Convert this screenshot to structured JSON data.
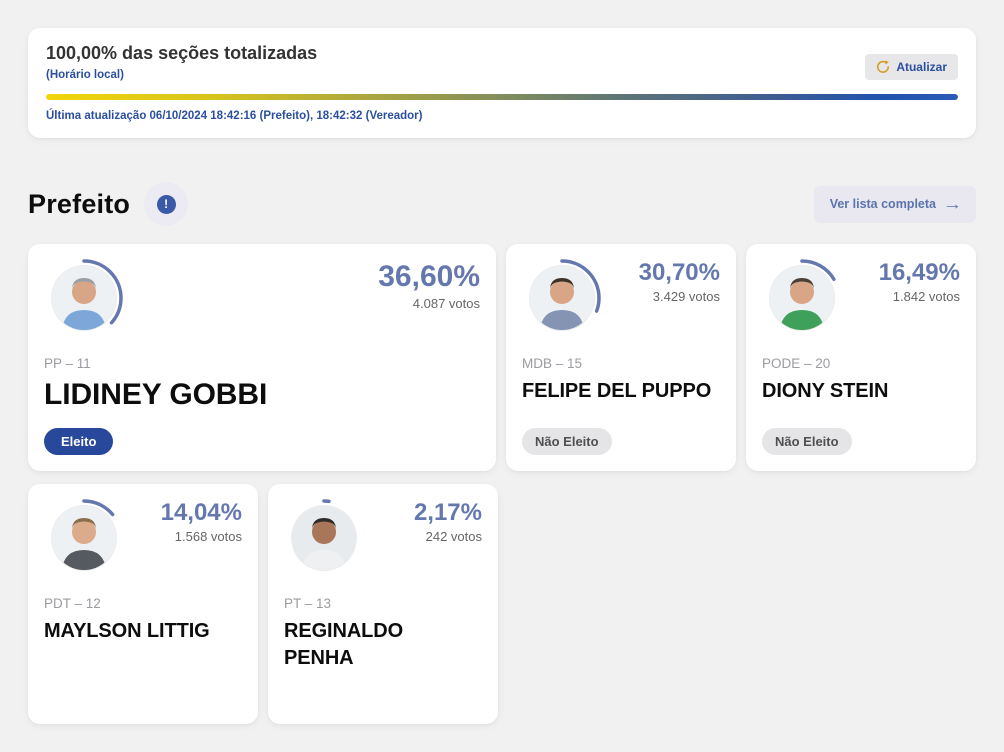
{
  "totalization": {
    "title": "100,00% das seções totalizadas",
    "timezone_note": "(Horário local)",
    "last_update": "Última atualização 06/10/2024 18:42:16 (Prefeito), 18:42:32 (Vereador)",
    "refresh_button": "Atualizar",
    "progress_percent": 100
  },
  "section": {
    "title": "Prefeito",
    "info_glyph": "!",
    "full_list_button": "Ver lista completa",
    "arrow_glyph": "→"
  },
  "colors": {
    "accent_blue": "#2b4f9e",
    "percent_blue": "#6478ae",
    "gold": "#d2a12a",
    "elected_bg": "#27489b",
    "not_elected_bg": "#e5e5e7"
  },
  "candidates": [
    {
      "name": "LIDINEY GOBBI",
      "party": "PP – 11",
      "percent": "36,60%",
      "percent_value": 36.6,
      "votes": "4.087 votos",
      "status": "Eleito"
    },
    {
      "name": "FELIPE DEL PUPPO",
      "party": "MDB – 15",
      "percent": "30,70%",
      "percent_value": 30.7,
      "votes": "3.429 votos",
      "status": "Não Eleito"
    },
    {
      "name": "DIONY STEIN",
      "party": "PODE – 20",
      "percent": "16,49%",
      "percent_value": 16.49,
      "votes": "1.842 votos",
      "status": "Não Eleito"
    },
    {
      "name": "MAYLSON LITTIG",
      "party": "PDT – 12",
      "percent": "14,04%",
      "percent_value": 14.04,
      "votes": "1.568 votos"
    },
    {
      "name": "REGINALDO PENHA",
      "party": "PT – 13",
      "percent": "2,17%",
      "percent_value": 2.17,
      "votes": "242 votos"
    }
  ]
}
